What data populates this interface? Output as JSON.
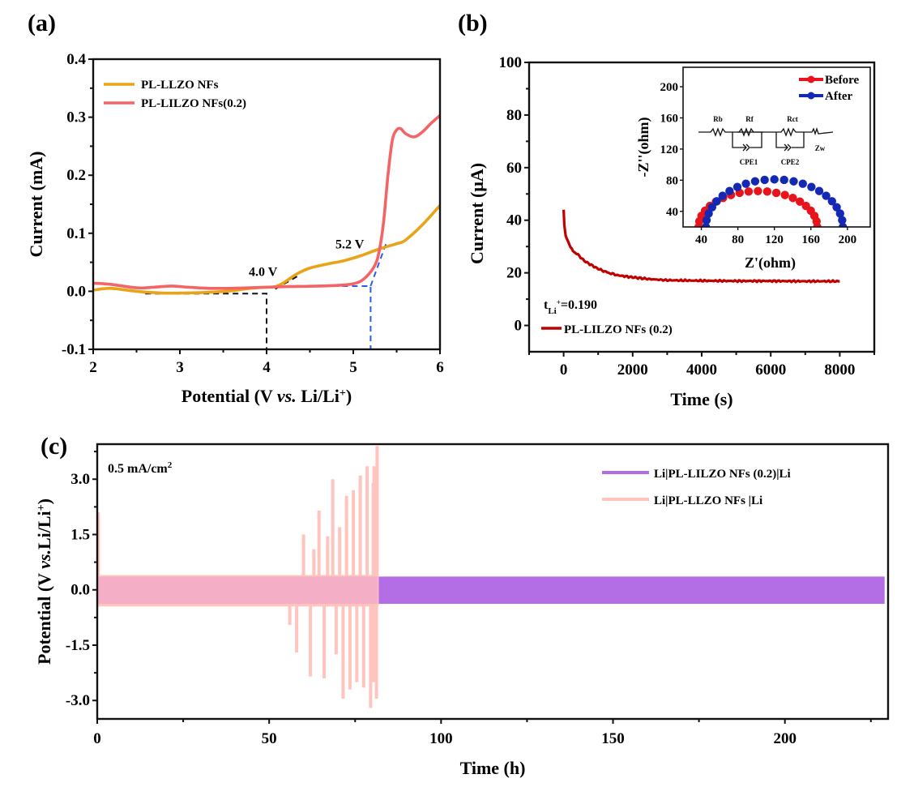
{
  "chart_data": [
    {
      "panel": "(a)",
      "type": "line",
      "title": "",
      "xlabel": "Potential (V vs. Li/Li+)",
      "xlabel_parts": [
        "Potential (V ",
        "vs.",
        " Li/Li",
        "+",
        ")"
      ],
      "ylabel": "Current (mA)",
      "xlim": [
        2,
        6
      ],
      "ylim": [
        -0.1,
        0.4
      ],
      "xticks": [
        "2",
        "3",
        "4",
        "5",
        "6"
      ],
      "xtick_values": [
        2,
        3,
        4,
        5,
        6
      ],
      "yticks": [
        "-0.1",
        "0.0",
        "0.1",
        "0.2",
        "0.3",
        "0.4"
      ],
      "ytick_values": [
        -0.1,
        0.0,
        0.1,
        0.2,
        0.3,
        0.4
      ],
      "legend_position": "top-left",
      "series": [
        {
          "name": "PL-LLZO NFs",
          "color": "#E8A317",
          "x": [
            2.0,
            2.2,
            2.5,
            2.8,
            3.0,
            3.3,
            3.6,
            3.8,
            4.0,
            4.1,
            4.2,
            4.35,
            4.5,
            4.7,
            4.9,
            5.1,
            5.3,
            5.5,
            5.6,
            5.8,
            6.0
          ],
          "y": [
            0.002,
            0.005,
            0.0,
            -0.003,
            -0.003,
            -0.002,
            0.001,
            0.005,
            0.007,
            0.008,
            0.015,
            0.03,
            0.04,
            0.047,
            0.053,
            0.062,
            0.073,
            0.082,
            0.088,
            0.115,
            0.148
          ]
        },
        {
          "name": "PL-LILZO NFs(0.2)",
          "color": "#F56464",
          "x": [
            2.0,
            2.2,
            2.5,
            2.7,
            2.9,
            3.1,
            3.4,
            3.8,
            4.2,
            4.6,
            4.9,
            5.05,
            5.15,
            5.25,
            5.3,
            5.35,
            5.4,
            5.45,
            5.5,
            5.55,
            5.6,
            5.7,
            5.8,
            5.9,
            6.0
          ],
          "y": [
            0.014,
            0.012,
            0.006,
            0.007,
            0.009,
            0.007,
            0.005,
            0.006,
            0.008,
            0.009,
            0.011,
            0.015,
            0.025,
            0.045,
            0.07,
            0.12,
            0.2,
            0.26,
            0.278,
            0.28,
            0.272,
            0.266,
            0.275,
            0.29,
            0.303
          ]
        }
      ],
      "annotations": [
        {
          "text": "4.0 V",
          "x": 4.0,
          "y": 0.035
        },
        {
          "text": "5.2 V",
          "x": 5.0,
          "y": 0.082
        }
      ],
      "guides": [
        {
          "color": "#111111",
          "points": [
            [
              2.6,
              -0.004
            ],
            [
              4.0,
              -0.004
            ],
            [
              4.0,
              -0.1
            ]
          ]
        },
        {
          "color": "#111111",
          "points": [
            [
              4.1,
              0.004
            ],
            [
              4.38,
              0.028
            ]
          ]
        },
        {
          "color": "#2B5CE6",
          "points": [
            [
              4.2,
              0.009
            ],
            [
              5.2,
              0.009
            ],
            [
              5.2,
              -0.1
            ]
          ]
        },
        {
          "color": "#2B5CE6",
          "points": [
            [
              5.2,
              0.009
            ],
            [
              5.38,
              0.083
            ]
          ]
        }
      ]
    },
    {
      "panel": "(b)",
      "type": "line",
      "title": "",
      "xlabel": "Time (s)",
      "ylabel": "Current (μA)",
      "xlim": [
        -1000,
        9000
      ],
      "ylim": [
        -10,
        100
      ],
      "xticks": [
        "0",
        "2000",
        "4000",
        "6000",
        "8000"
      ],
      "xtick_values": [
        0,
        2000,
        4000,
        6000,
        8000
      ],
      "yticks": [
        "0",
        "20",
        "40",
        "60",
        "80",
        "100"
      ],
      "ytick_values": [
        0,
        20,
        40,
        60,
        80,
        100
      ],
      "legend_position": "bottom-left",
      "annotation": {
        "prefix": "t",
        "sub": "Li",
        "sup": "+",
        "suffix": "=0.190"
      },
      "series": [
        {
          "name": "PL-LILZO NFs (0.2)",
          "color": "#C00000",
          "x": [
            0,
            20,
            60,
            120,
            200,
            300,
            450,
            600,
            800,
            1000,
            1300,
            1600,
            2000,
            2500,
            3000,
            4000,
            5000,
            6000,
            7000,
            8000
          ],
          "y": [
            44,
            38,
            34,
            32,
            30,
            28,
            26.5,
            24.5,
            23,
            21.5,
            20,
            19,
            18.3,
            17.6,
            17.2,
            17,
            16.9,
            16.9,
            16.8,
            16.8
          ]
        }
      ],
      "inset": {
        "type": "scatter",
        "xlabel": "Z'(ohm)",
        "ylabel": "-Z''(ohm)",
        "xlim": [
          20,
          225
        ],
        "ylim": [
          20,
          225
        ],
        "xticks": [
          "40",
          "80",
          "120",
          "160",
          "200"
        ],
        "xtick_values": [
          40,
          80,
          120,
          160,
          200
        ],
        "yticks": [
          "40",
          "80",
          "120",
          "160",
          "200"
        ],
        "ytick_values": [
          40,
          80,
          120,
          160,
          200
        ],
        "legend_position": "top-right",
        "circuit_labels": [
          "Rb",
          "Rf",
          "Rct",
          "CPE1",
          "CPE2",
          "Zw"
        ],
        "series": [
          {
            "name": "Before",
            "color": "#E8141C",
            "x_start": 37,
            "x_end": 167,
            "peak": 52
          },
          {
            "name": "After",
            "color": "#1428B4",
            "x_start": 45,
            "x_end": 195,
            "peak": 67
          }
        ]
      }
    },
    {
      "panel": "(c)",
      "type": "line",
      "title": "",
      "xlabel": "Time (h)",
      "ylabel": "Potential (V vs.Li/Li+)",
      "ylabel_parts": [
        "Potential (V ",
        "vs.",
        "Li/Li",
        "+",
        ")"
      ],
      "xlim": [
        0,
        230
      ],
      "ylim": [
        -3.5,
        3.95
      ],
      "xticks": [
        "0",
        "50",
        "100",
        "150",
        "200"
      ],
      "xtick_values": [
        0,
        50,
        100,
        150,
        200
      ],
      "yticks": [
        "-3.0",
        "-1.5",
        "0.0",
        "1.5",
        "3.0"
      ],
      "ytick_values": [
        -3.0,
        -1.5,
        0.0,
        1.5,
        3.0
      ],
      "legend_position": "top-right",
      "annotation": {
        "text": "0.5 mA/cm",
        "sup": "2"
      },
      "series": [
        {
          "name": "Li|PL-LILZO NFs (0.2)|Li",
          "color": "#B36EE6",
          "x_end": 229,
          "band_upper": 0.36,
          "band_lower": -0.38
        },
        {
          "name": "Li|PL-LLZO NFs |Li",
          "color": "#FFC4BE",
          "x_end": 81.6,
          "band_upper": 0.4,
          "band_lower": -0.45,
          "spikes": [
            {
              "x": 0.3,
              "y": 2.1
            },
            {
              "x": 56,
              "y": -0.95
            },
            {
              "x": 58,
              "y": -1.7
            },
            {
              "x": 60,
              "y": 1.5
            },
            {
              "x": 62,
              "y": -2.35
            },
            {
              "x": 63,
              "y": 1.1
            },
            {
              "x": 64.5,
              "y": 2.15
            },
            {
              "x": 66,
              "y": -2.4
            },
            {
              "x": 67,
              "y": 1.45
            },
            {
              "x": 68.5,
              "y": 3.0
            },
            {
              "x": 69.5,
              "y": -1.75
            },
            {
              "x": 70.5,
              "y": 1.7
            },
            {
              "x": 71.5,
              "y": -2.95
            },
            {
              "x": 72.5,
              "y": 2.55
            },
            {
              "x": 73.5,
              "y": -2.7
            },
            {
              "x": 74.5,
              "y": 2.7
            },
            {
              "x": 75.5,
              "y": -2.5
            },
            {
              "x": 76.5,
              "y": 3.1
            },
            {
              "x": 77.5,
              "y": -2.65
            },
            {
              "x": 78.5,
              "y": 3.35
            },
            {
              "x": 79.5,
              "y": -3.2
            },
            {
              "x": 80.5,
              "y": 3.35
            },
            {
              "x": 81.4,
              "y": 3.9
            },
            {
              "x": 81.2,
              "y": -2.95
            }
          ]
        }
      ]
    }
  ],
  "panel_labels": {
    "a": "(a)",
    "b": "(b)",
    "c": "(c)"
  }
}
